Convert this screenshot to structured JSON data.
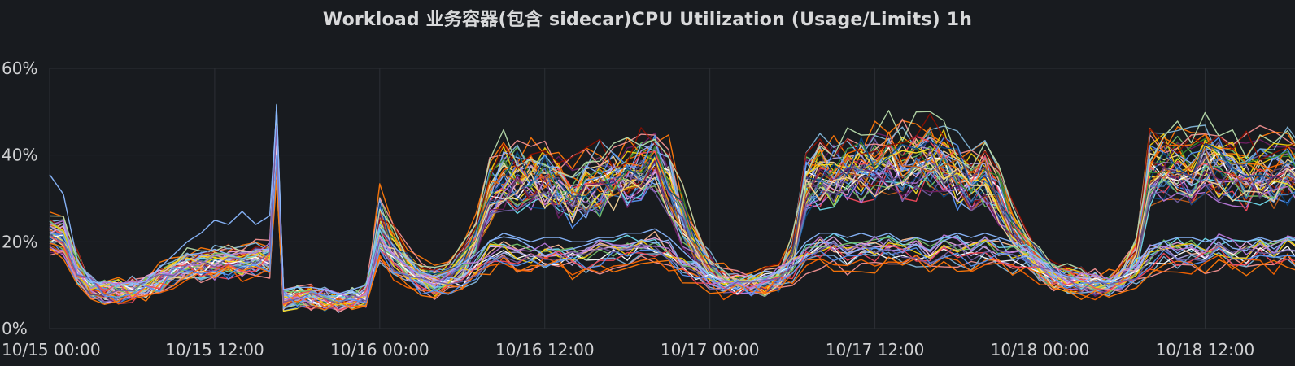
{
  "panel": {
    "title": "Workload 业务容器(包含 sidecar)CPU Utilization (Usage/Limits) 1h"
  },
  "chart_data": {
    "type": "line",
    "title": "Workload 业务容器(包含 sidecar)CPU Utilization (Usage/Limits) 1h",
    "xlabel": "",
    "ylabel": "",
    "x_unit": "hours since 10/15 00:00",
    "x_range": [
      0,
      94
    ],
    "ylim": [
      0,
      60
    ],
    "y_ticks": [
      {
        "value": 0,
        "label": "0%"
      },
      {
        "value": 20,
        "label": "20%"
      },
      {
        "value": 40,
        "label": "40%"
      },
      {
        "value": 60,
        "label": "60%"
      }
    ],
    "x_ticks": [
      {
        "value": 0,
        "label": "10/15 00:00"
      },
      {
        "value": 12,
        "label": "10/15 12:00"
      },
      {
        "value": 24,
        "label": "10/16 00:00"
      },
      {
        "value": 36,
        "label": "10/16 12:00"
      },
      {
        "value": 48,
        "label": "10/17 00:00"
      },
      {
        "value": 60,
        "label": "10/17 12:00"
      },
      {
        "value": 72,
        "label": "10/18 00:00"
      },
      {
        "value": 84,
        "label": "10/18 12:00"
      }
    ],
    "grid": true,
    "legend": "none",
    "colors": [
      "#73bf69",
      "#f2cc0c",
      "#8ab8ff",
      "#ff780a",
      "#f2495c",
      "#5794f2",
      "#b877d9",
      "#705da0",
      "#37872d",
      "#fade2a",
      "#447ebc",
      "#c15c17",
      "#890f02",
      "#0a437c",
      "#6d1f62",
      "#584477",
      "#b7dbab",
      "#f4d598",
      "#70dbed",
      "#f9ba8f",
      "#f29191",
      "#82b5d8",
      "#e5a8e2",
      "#aea2e0",
      "#ffffff",
      "#fa6400"
    ],
    "groups": [
      {
        "count": 44,
        "x": [
          0,
          1,
          2,
          3,
          4,
          5,
          6,
          7,
          8,
          9,
          10,
          11,
          12,
          13,
          14,
          15,
          16,
          16.5,
          17,
          18,
          19,
          20,
          21,
          22,
          23,
          24,
          25,
          26,
          27,
          28,
          29,
          30,
          31,
          32,
          33,
          34,
          35,
          36,
          37,
          38,
          39,
          40,
          41,
          42,
          43,
          44,
          45,
          46,
          47,
          48,
          49,
          50,
          51,
          52,
          53,
          54,
          55,
          56,
          57,
          58,
          59,
          60,
          61,
          62,
          63,
          64,
          65,
          66,
          67,
          68,
          69,
          70,
          71,
          72,
          73,
          74,
          75,
          76,
          77,
          78,
          79,
          80,
          81,
          82,
          83,
          84,
          85,
          86,
          87,
          88,
          89,
          90,
          91,
          92,
          93,
          94
        ],
        "y": [
          23,
          22,
          15,
          10,
          9,
          9,
          9.5,
          10,
          12,
          14,
          15,
          16,
          16,
          16,
          16.5,
          17,
          17.5,
          46,
          7,
          7.5,
          7.5,
          7,
          6.5,
          7,
          8,
          26,
          20,
          16,
          13,
          12,
          13,
          16,
          22,
          33,
          37,
          37,
          37,
          37,
          35,
          33,
          34,
          36,
          37,
          38,
          39,
          41,
          36,
          27,
          20,
          15,
          12,
          11,
          11,
          11,
          12,
          18,
          35,
          38,
          38,
          39,
          40,
          40,
          41,
          40,
          41,
          42,
          41,
          38,
          36,
          38,
          32,
          25,
          20,
          16,
          13,
          12,
          11.5,
          11,
          11,
          13,
          18,
          38,
          40,
          40,
          39,
          41,
          40,
          39,
          38,
          38,
          38,
          39,
          38,
          39,
          40,
          39
        ]
      },
      {
        "count": 16,
        "x": [
          0,
          1,
          2,
          3,
          4,
          5,
          6,
          7,
          8,
          9,
          10,
          11,
          12,
          13,
          14,
          15,
          16,
          16.5,
          17,
          18,
          19,
          20,
          21,
          22,
          23,
          24,
          25,
          26,
          27,
          28,
          29,
          30,
          31,
          32,
          33,
          34,
          35,
          36,
          37,
          38,
          39,
          40,
          41,
          42,
          43,
          44,
          45,
          46,
          47,
          48,
          49,
          50,
          51,
          52,
          53,
          54,
          55,
          56,
          57,
          58,
          59,
          60,
          61,
          62,
          63,
          64,
          65,
          66,
          67,
          68,
          69,
          70,
          71,
          72,
          73,
          74,
          75,
          76,
          77,
          78,
          79,
          80,
          81,
          82,
          83,
          84,
          85,
          86,
          87,
          88,
          89,
          90,
          91,
          92,
          93,
          94
        ],
        "y": [
          22,
          21,
          13,
          10,
          9,
          9,
          9,
          9.5,
          11,
          13,
          14,
          14.5,
          15,
          15,
          15,
          15.5,
          16,
          44,
          7,
          7,
          7,
          7,
          6,
          7,
          8,
          19,
          15,
          12,
          10,
          9,
          10,
          12,
          14,
          17,
          18,
          17,
          16,
          17,
          17,
          16,
          16,
          17,
          17,
          18,
          18,
          19,
          17,
          15,
          13,
          11,
          10,
          10,
          10,
          11,
          12,
          14,
          17,
          18,
          18,
          17,
          18,
          18,
          18,
          17,
          18,
          17,
          18,
          18,
          17,
          18,
          17,
          16,
          16,
          14,
          12,
          11,
          10,
          10,
          10,
          11,
          13,
          16,
          17,
          17,
          17,
          17,
          18,
          17,
          17,
          18,
          17,
          18,
          17,
          18,
          18,
          18
        ]
      },
      {
        "count": 1,
        "x": [
          0,
          1,
          2,
          3,
          4,
          5,
          6,
          7,
          8,
          9,
          10,
          11,
          12,
          13,
          14,
          15,
          16,
          16.5,
          17,
          18,
          19,
          20,
          21,
          22,
          23,
          24,
          25,
          26,
          27,
          28,
          29,
          30,
          31,
          32,
          33,
          34,
          35,
          36,
          37,
          38,
          39,
          40,
          41,
          42,
          43,
          44,
          45,
          46,
          47,
          48,
          49,
          50,
          51,
          52,
          53,
          54,
          55,
          56,
          57,
          58,
          59,
          60,
          61,
          62,
          63,
          64,
          65,
          66,
          67,
          68,
          69,
          70,
          71,
          72,
          73,
          74,
          75,
          76,
          77,
          78,
          79,
          80,
          81,
          82,
          83,
          84,
          85,
          86,
          87,
          88,
          89,
          90,
          91,
          92,
          93,
          94
        ],
        "y": [
          35.5,
          31,
          16,
          11,
          10,
          10,
          10,
          11,
          14,
          17,
          20,
          22,
          25,
          24,
          27,
          24,
          26,
          50,
          9,
          9.5,
          9.5,
          9,
          8,
          9,
          10,
          24,
          19,
          16,
          13,
          12,
          13,
          15,
          17,
          20,
          22,
          21,
          20,
          21,
          21,
          20,
          20,
          21,
          21,
          22,
          22,
          23,
          21,
          18,
          15,
          12,
          11,
          11,
          11,
          12,
          13,
          16,
          20,
          22,
          22,
          21,
          22,
          21,
          22,
          20,
          21,
          20,
          21,
          22,
          21,
          22,
          21,
          20,
          18,
          16,
          13,
          12,
          11,
          11,
          11,
          12,
          15,
          19,
          20,
          21,
          21,
          20,
          21,
          20,
          20,
          21,
          20,
          21,
          20,
          20,
          21,
          20
        ]
      }
    ]
  }
}
